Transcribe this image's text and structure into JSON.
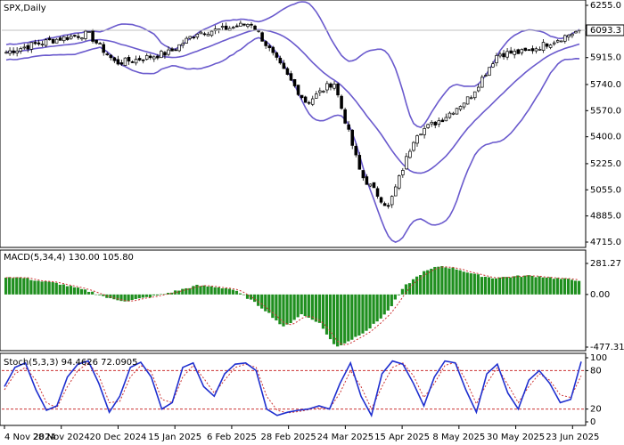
{
  "chart_data": {
    "type": "candlestick",
    "symbol_label": "SPX,Daily",
    "last_price_label": "6093.3",
    "x_tick_labels": [
      "4 Nov 2024",
      "28 Nov 2024",
      "20 Dec 2024",
      "15 Jan 2025",
      "6 Feb 2025",
      "28 Feb 2025",
      "24 Mar 2025",
      "15 Apr 2025",
      "8 May 2025",
      "30 May 2025",
      "23 Jun 2025"
    ],
    "price_axis": {
      "ticks": [
        "6255.0",
        "6090.0",
        "5915.0",
        "5740.0",
        "5570.0",
        "5400.0",
        "5225.0",
        "5055.0",
        "4885.0",
        "4715.0"
      ],
      "ylim": [
        4715,
        6255
      ]
    },
    "price_series": {
      "dates": [
        "2024-11-04",
        "2024-11-15",
        "2024-11-28",
        "2024-12-10",
        "2024-12-20",
        "2025-01-02",
        "2025-01-15",
        "2025-01-24",
        "2025-02-06",
        "2025-02-20",
        "2025-02-28",
        "2025-03-10",
        "2025-03-24",
        "2025-04-04",
        "2025-04-08",
        "2025-04-15",
        "2025-04-25",
        "2025-05-08",
        "2025-05-20",
        "2025-05-30",
        "2025-06-10",
        "2025-06-23"
      ],
      "close": [
        5950,
        6000,
        6040,
        6070,
        5880,
        5910,
        5950,
        6080,
        6100,
        6140,
        5870,
        5620,
        5760,
        5150,
        4940,
        5420,
        5520,
        5660,
        5940,
        5950,
        6020,
        6093
      ]
    },
    "macd": {
      "label": "MACD(5,34,4) 130.00 105.80",
      "ticks": [
        "281.27",
        "0.00",
        "-477.31"
      ],
      "ylim": [
        -477.31,
        281.27
      ],
      "histogram": [
        160,
        150,
        120,
        100,
        60,
        20,
        -40,
        -60,
        -30,
        0,
        40,
        80,
        70,
        50,
        -40,
        -150,
        -300,
        -180,
        -250,
        -480,
        -400,
        -300,
        -150,
        80,
        200,
        260,
        230,
        180,
        150,
        160,
        170,
        160,
        140,
        130
      ]
    },
    "stoch": {
      "label": "Stoch(5,3,3) 94.4626 72.0905",
      "ticks": [
        "100",
        "80",
        "20",
        "0"
      ],
      "ylim": [
        0,
        100
      ],
      "levels": [
        80,
        20
      ],
      "k": [
        55,
        85,
        92,
        50,
        18,
        25,
        70,
        90,
        95,
        60,
        15,
        40,
        85,
        93,
        70,
        20,
        30,
        85,
        92,
        55,
        40,
        75,
        90,
        92,
        80,
        20,
        10,
        15,
        18,
        20,
        25,
        20,
        60,
        92,
        40,
        10,
        75,
        95,
        90,
        60,
        25,
        70,
        95,
        92,
        50,
        15,
        75,
        90,
        45,
        20,
        65,
        80,
        60,
        30,
        35,
        94
      ],
      "d": [
        50,
        75,
        85,
        65,
        30,
        22,
        55,
        80,
        92,
        72,
        30,
        32,
        70,
        88,
        78,
        35,
        30,
        70,
        88,
        68,
        45,
        65,
        85,
        90,
        85,
        40,
        18,
        14,
        16,
        19,
        22,
        21,
        45,
        80,
        55,
        20,
        55,
        85,
        92,
        72,
        38,
        60,
        88,
        93,
        65,
        28,
        60,
        85,
        58,
        30,
        55,
        75,
        65,
        42,
        38,
        72
      ]
    },
    "colors": {
      "bands": "#6a5acd",
      "candles": "#000000",
      "macd_hist": "#1f8f1f",
      "stoch_k": "#1f2fcf",
      "stoch_d": "#cc3333",
      "levels": "#cc3333",
      "grid": "#c0c0c0"
    }
  }
}
